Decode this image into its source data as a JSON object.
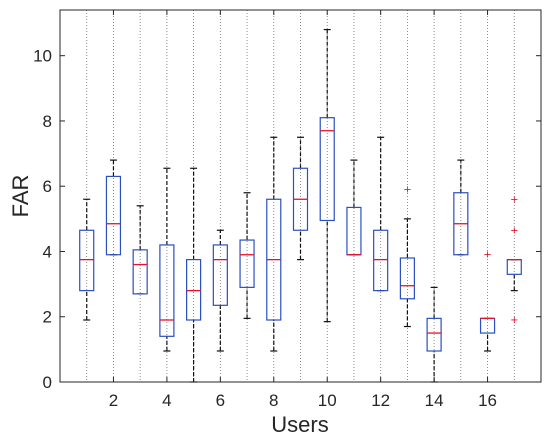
{
  "chart_data": {
    "type": "boxplot",
    "title": "",
    "xlabel": "Users",
    "ylabel": "FAR",
    "xlim": [
      0,
      18
    ],
    "ylim": [
      0,
      11.4
    ],
    "grid": "vertical-dotted",
    "x_tick_labels": [
      "2",
      "4",
      "6",
      "8",
      "10",
      "12",
      "14",
      "16"
    ],
    "y_tick_labels": [
      "0",
      "2",
      "4",
      "6",
      "8",
      "10"
    ],
    "colors": {
      "box": "#2b4fbf",
      "median": "#e8112d",
      "whisker": "#111111",
      "outlier": "#e8112d",
      "grid": "#6f6f6f",
      "axis": "#262626"
    },
    "categories": [
      1,
      2,
      3,
      4,
      5,
      6,
      7,
      8,
      9,
      10,
      11,
      12,
      13,
      14,
      15,
      16,
      17
    ],
    "boxes": [
      {
        "user": 1,
        "whisker_low": 1.9,
        "q1": 2.8,
        "median": 3.75,
        "q3": 4.65,
        "whisker_high": 5.6,
        "outliers": []
      },
      {
        "user": 2,
        "whisker_low": 3.9,
        "q1": 3.9,
        "median": 4.85,
        "q3": 6.3,
        "whisker_high": 6.8,
        "outliers": []
      },
      {
        "user": 3,
        "whisker_low": 2.7,
        "q1": 2.7,
        "median": 3.6,
        "q3": 4.05,
        "whisker_high": 5.4,
        "outliers": []
      },
      {
        "user": 4,
        "whisker_low": 0.95,
        "q1": 1.4,
        "median": 1.9,
        "q3": 4.2,
        "whisker_high": 6.55,
        "outliers": []
      },
      {
        "user": 5,
        "whisker_low": 0.0,
        "q1": 1.9,
        "median": 2.8,
        "q3": 3.75,
        "whisker_high": 6.55,
        "outliers": []
      },
      {
        "user": 6,
        "whisker_low": 0.95,
        "q1": 2.35,
        "median": 3.75,
        "q3": 4.2,
        "whisker_high": 4.65,
        "outliers": []
      },
      {
        "user": 7,
        "whisker_low": 1.95,
        "q1": 2.9,
        "median": 3.9,
        "q3": 4.35,
        "whisker_high": 5.8,
        "outliers": []
      },
      {
        "user": 8,
        "whisker_low": 0.95,
        "q1": 1.9,
        "median": 3.75,
        "q3": 5.6,
        "whisker_high": 7.5,
        "outliers": []
      },
      {
        "user": 9,
        "whisker_low": 3.75,
        "q1": 4.65,
        "median": 5.6,
        "q3": 6.55,
        "whisker_high": 7.5,
        "outliers": []
      },
      {
        "user": 10,
        "whisker_low": 1.85,
        "q1": 4.95,
        "median": 7.7,
        "q3": 8.1,
        "whisker_high": 10.8,
        "outliers": []
      },
      {
        "user": 11,
        "whisker_low": 3.9,
        "q1": 3.9,
        "median": 3.9,
        "q3": 5.35,
        "whisker_high": 6.8,
        "outliers": []
      },
      {
        "user": 12,
        "whisker_low": 2.8,
        "q1": 2.8,
        "median": 3.75,
        "q3": 4.65,
        "whisker_high": 7.5,
        "outliers": []
      },
      {
        "user": 13,
        "whisker_low": 1.7,
        "q1": 2.55,
        "median": 2.95,
        "q3": 3.8,
        "whisker_high": 5.0,
        "outliers": [
          5.9
        ]
      },
      {
        "user": 14,
        "whisker_low": 0.0,
        "q1": 0.95,
        "median": 1.5,
        "q3": 1.95,
        "whisker_high": 2.9,
        "outliers": []
      },
      {
        "user": 15,
        "whisker_low": 3.9,
        "q1": 3.9,
        "median": 4.85,
        "q3": 5.8,
        "whisker_high": 6.8,
        "outliers": []
      },
      {
        "user": 16,
        "whisker_low": 0.95,
        "q1": 1.5,
        "median": 1.95,
        "q3": 1.95,
        "whisker_high": 1.95,
        "outliers": [
          3.9
        ]
      },
      {
        "user": 17,
        "whisker_low": 2.8,
        "q1": 3.3,
        "median": 3.75,
        "q3": 3.75,
        "whisker_high": 3.75,
        "outliers": [
          1.9,
          4.65,
          5.6
        ]
      }
    ]
  }
}
